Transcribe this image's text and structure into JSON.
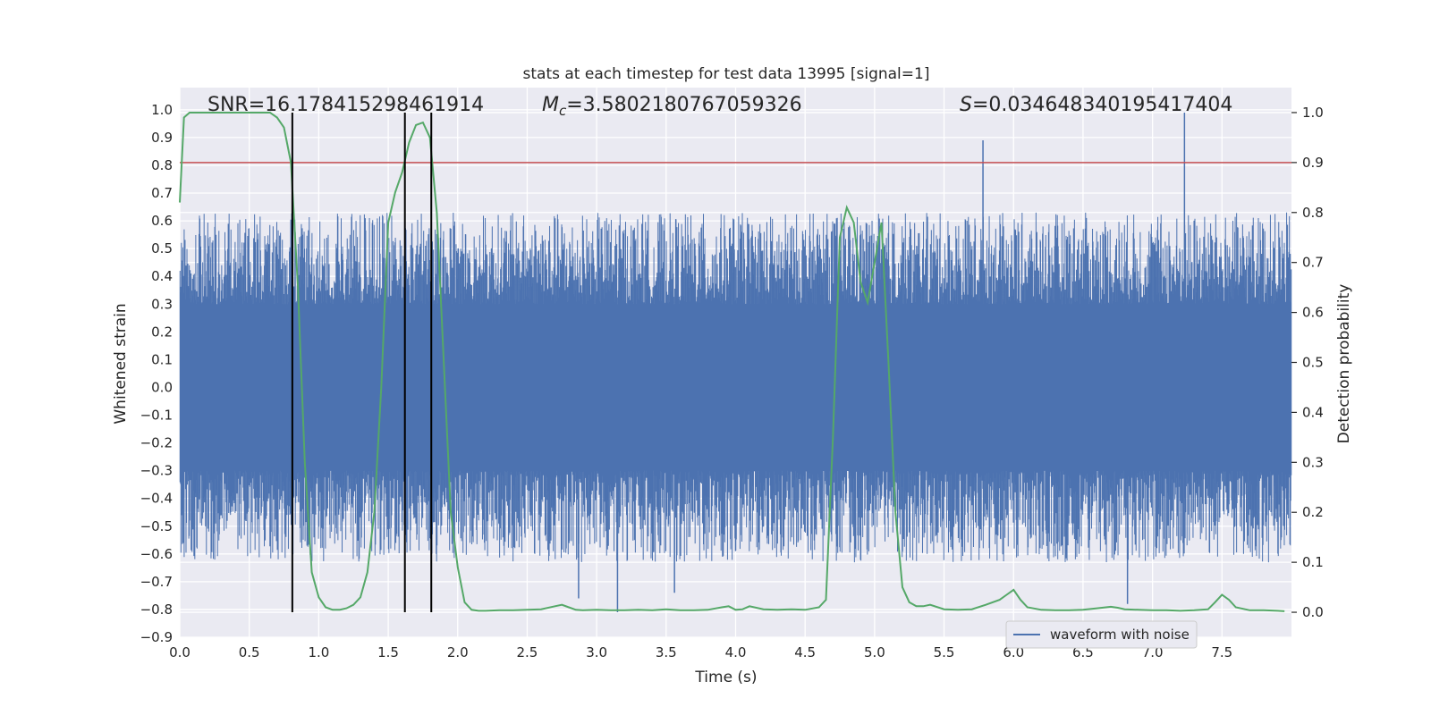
{
  "chart_data": {
    "type": "line",
    "title": "stats at each timestep for test data 13995 [signal=1]",
    "xlabel": "Time (s)",
    "ylabel": "Whitened strain",
    "y2label": "Detection probability",
    "xlim": [
      0.0,
      8.0
    ],
    "ylim": [
      -0.9,
      1.08
    ],
    "y2lim": [
      -0.05,
      1.05
    ],
    "xticks": [
      0.0,
      0.5,
      1.0,
      1.5,
      2.0,
      2.5,
      3.0,
      3.5,
      4.0,
      4.5,
      5.0,
      5.5,
      6.0,
      6.5,
      7.0,
      7.5
    ],
    "xtick_labels": [
      "0.0",
      "0.5",
      "1.0",
      "1.5",
      "2.0",
      "2.5",
      "3.0",
      "3.5",
      "4.0",
      "4.5",
      "5.0",
      "5.5",
      "6.0",
      "6.5",
      "7.0",
      "7.5"
    ],
    "yticks": [
      -0.9,
      -0.8,
      -0.7,
      -0.6,
      -0.5,
      -0.4,
      -0.3,
      -0.2,
      -0.1,
      0.0,
      0.1,
      0.2,
      0.3,
      0.4,
      0.5,
      0.6,
      0.7,
      0.8,
      0.9,
      1.0
    ],
    "ytick_labels": [
      "−0.9",
      "−0.8",
      "−0.7",
      "−0.6",
      "−0.5",
      "−0.4",
      "−0.3",
      "−0.2",
      "−0.1",
      "0.0",
      "0.1",
      "0.2",
      "0.3",
      "0.4",
      "0.5",
      "0.6",
      "0.7",
      "0.8",
      "0.9",
      "1.0"
    ],
    "y2ticks": [
      0.0,
      0.1,
      0.2,
      0.3,
      0.4,
      0.5,
      0.6,
      0.7,
      0.8,
      0.9,
      1.0
    ],
    "y2tick_labels": [
      "0.0",
      "0.1",
      "0.2",
      "0.3",
      "0.4",
      "0.5",
      "0.6",
      "0.7",
      "0.8",
      "0.9",
      "1.0"
    ],
    "annotations": {
      "snr": "SNR=16.178415298461914",
      "mc_symbol": "M",
      "mc_sub": "c",
      "mc_value": "=3.5802180767059326",
      "s_symbol": "S",
      "s_value": "=0.034648340195417404"
    },
    "legend": {
      "label": "waveform with noise",
      "position": "lower-right"
    },
    "waveform": {
      "name": "waveform with noise",
      "color": "#4c72b0",
      "core_envelope": [
        -0.27,
        0.27
      ],
      "peaks": [
        {
          "x": 5.78,
          "y": 0.89
        },
        {
          "x": 7.23,
          "y": 0.99
        },
        {
          "x": 3.15,
          "y": -0.81
        },
        {
          "x": 6.82,
          "y": -0.78
        },
        {
          "x": 2.87,
          "y": -0.76
        },
        {
          "x": 3.56,
          "y": -0.74
        }
      ]
    },
    "probability": {
      "name": "detection probability",
      "color": "#55a868",
      "x": [
        0.0,
        0.03,
        0.07,
        0.12,
        0.2,
        0.3,
        0.45,
        0.6,
        0.65,
        0.7,
        0.75,
        0.8,
        0.85,
        0.9,
        0.95,
        1.0,
        1.05,
        1.1,
        1.15,
        1.2,
        1.25,
        1.3,
        1.35,
        1.4,
        1.45,
        1.5,
        1.55,
        1.6,
        1.65,
        1.7,
        1.75,
        1.8,
        1.85,
        1.9,
        1.95,
        2.0,
        2.05,
        2.1,
        2.15,
        2.2,
        2.3,
        2.4,
        2.5,
        2.6,
        2.7,
        2.75,
        2.8,
        2.85,
        2.9,
        3.0,
        3.1,
        3.2,
        3.3,
        3.4,
        3.5,
        3.6,
        3.7,
        3.8,
        3.9,
        3.95,
        4.0,
        4.05,
        4.1,
        4.2,
        4.3,
        4.4,
        4.5,
        4.6,
        4.65,
        4.7,
        4.75,
        4.8,
        4.85,
        4.9,
        4.95,
        5.0,
        5.05,
        5.1,
        5.15,
        5.2,
        5.25,
        5.3,
        5.35,
        5.4,
        5.5,
        5.6,
        5.7,
        5.8,
        5.9,
        5.95,
        6.0,
        6.05,
        6.1,
        6.2,
        6.3,
        6.4,
        6.5,
        6.6,
        6.7,
        6.75,
        6.8,
        6.9,
        7.0,
        7.1,
        7.2,
        7.3,
        7.4,
        7.45,
        7.5,
        7.55,
        7.6,
        7.7,
        7.8,
        7.9,
        7.95
      ],
      "y": [
        0.82,
        0.99,
        1.0,
        1.0,
        1.0,
        1.0,
        1.0,
        1.0,
        1.0,
        0.99,
        0.97,
        0.9,
        0.65,
        0.3,
        0.08,
        0.03,
        0.01,
        0.005,
        0.005,
        0.008,
        0.015,
        0.03,
        0.08,
        0.2,
        0.45,
        0.78,
        0.84,
        0.88,
        0.94,
        0.975,
        0.98,
        0.95,
        0.8,
        0.5,
        0.2,
        0.09,
        0.02,
        0.005,
        0.003,
        0.003,
        0.004,
        0.004,
        0.005,
        0.006,
        0.012,
        0.015,
        0.01,
        0.005,
        0.004,
        0.005,
        0.004,
        0.004,
        0.005,
        0.004,
        0.006,
        0.004,
        0.004,
        0.005,
        0.01,
        0.012,
        0.005,
        0.006,
        0.012,
        0.006,
        0.005,
        0.006,
        0.005,
        0.01,
        0.025,
        0.35,
        0.75,
        0.81,
        0.78,
        0.66,
        0.62,
        0.7,
        0.78,
        0.5,
        0.2,
        0.05,
        0.02,
        0.012,
        0.012,
        0.015,
        0.006,
        0.005,
        0.006,
        0.015,
        0.025,
        0.035,
        0.045,
        0.025,
        0.01,
        0.005,
        0.004,
        0.004,
        0.005,
        0.008,
        0.011,
        0.009,
        0.006,
        0.005,
        0.004,
        0.004,
        0.003,
        0.004,
        0.006,
        0.02,
        0.035,
        0.025,
        0.01,
        0.004,
        0.004,
        0.003,
        0.002
      ]
    },
    "threshold": {
      "y2": 0.9,
      "color": "#c44e52"
    },
    "vlines": [
      0.81,
      1.62,
      1.81
    ],
    "vline_color": "#000000"
  }
}
